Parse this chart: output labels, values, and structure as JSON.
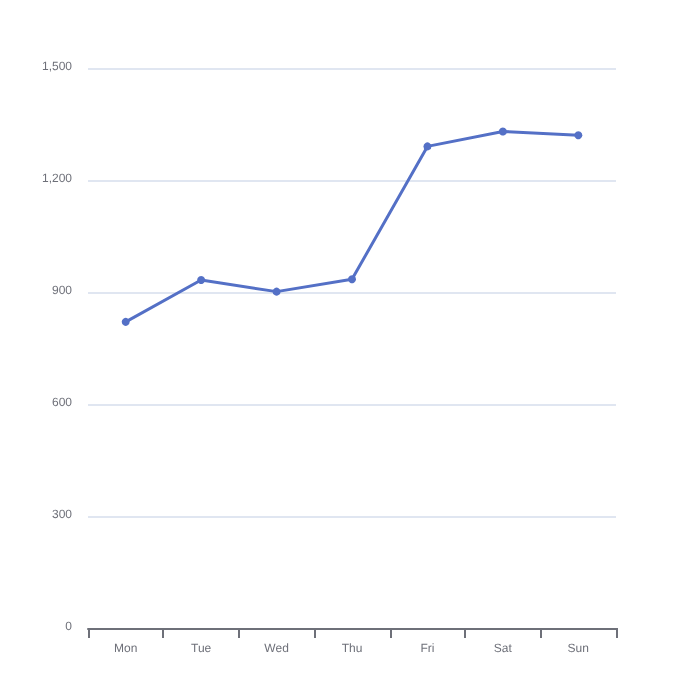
{
  "chart_data": {
    "type": "line",
    "categories": [
      "Mon",
      "Tue",
      "Wed",
      "Thu",
      "Fri",
      "Sat",
      "Sun"
    ],
    "series": [
      {
        "color": "#5470c6",
        "values": [
          820,
          932,
          901,
          934,
          1290,
          1330,
          1320
        ]
      }
    ],
    "ylim": [
      0,
      1500
    ],
    "yticks": [
      0,
      300,
      600,
      900,
      {
        "value": 1200,
        "label": "1,200"
      },
      {
        "value": 1500,
        "label": "1,500"
      }
    ],
    "grid": "y",
    "marker": "circle",
    "line_style": "solid"
  }
}
